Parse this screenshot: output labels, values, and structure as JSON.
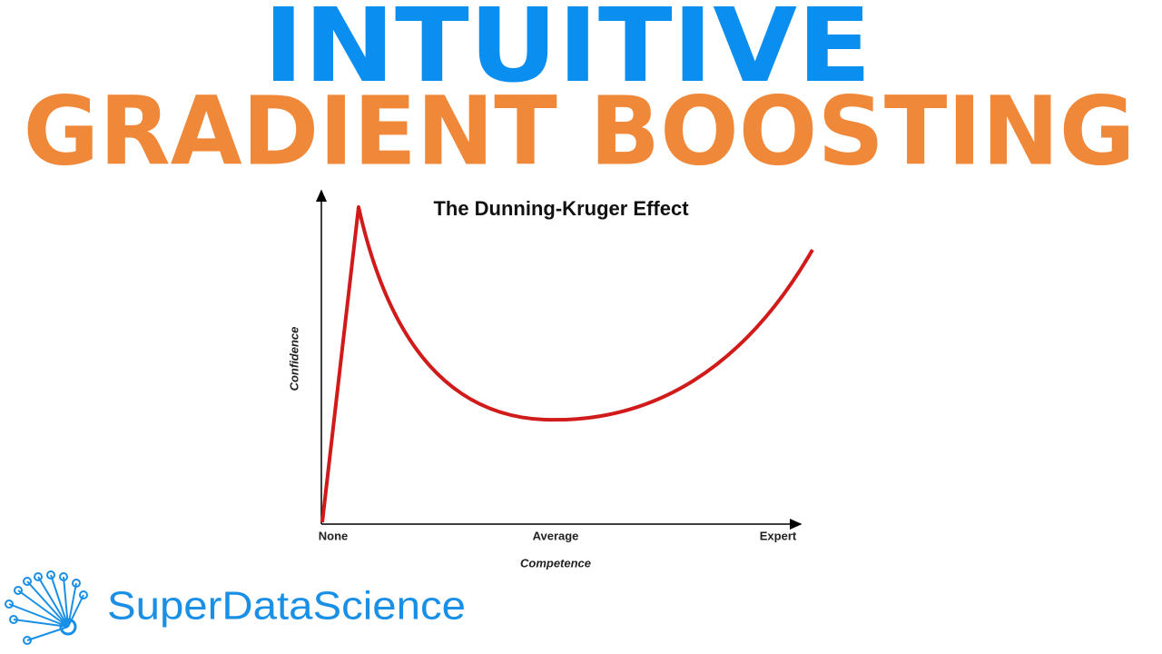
{
  "header": {
    "line1": "INTUITIVE",
    "line2": "GRADIENT BOOSTING"
  },
  "diagram": {
    "title": "The Dunning-Kruger Effect",
    "y_label": "Confidence",
    "x_label": "Competence",
    "x_ticks": [
      "None",
      "Average",
      "Expert"
    ]
  },
  "logo": {
    "text": "SuperDataScience"
  }
}
